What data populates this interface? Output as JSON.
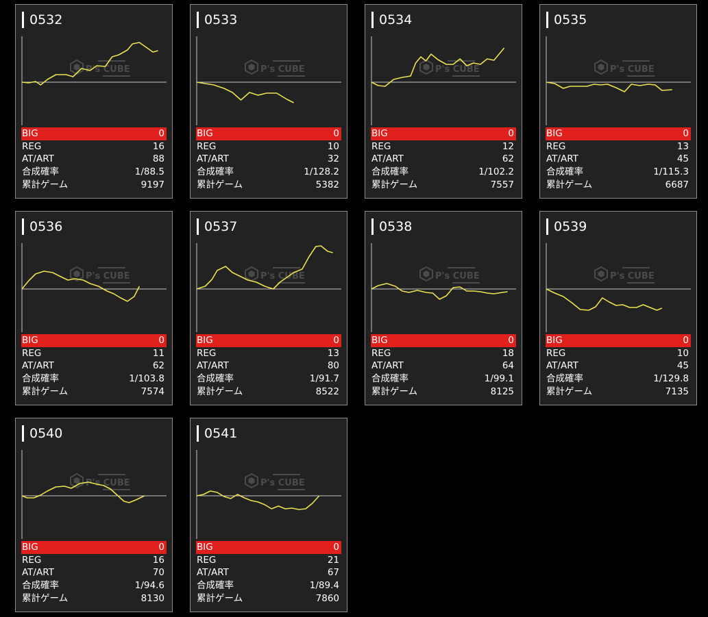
{
  "colors": {
    "background": "#000000",
    "card": "#222222",
    "border": "#8c8c8c",
    "big_row": "#e0201c",
    "line": "#ece252",
    "axis": "#c8c8c8"
  },
  "stat_labels": {
    "big": "BIG",
    "reg": "REG",
    "atart": "AT/ART",
    "prob": "合成確率",
    "games": "累計ゲーム"
  },
  "watermark": {
    "brand": "P's CUBE",
    "icon": "hexagon-logo-icon"
  },
  "machines": [
    {
      "id": "0532",
      "big": "0",
      "reg": "16",
      "atart": "88",
      "prob": "1/88.5",
      "games": "9197",
      "trace": [
        [
          0,
          0
        ],
        [
          4,
          -1
        ],
        [
          8,
          1
        ],
        [
          11,
          -4
        ],
        [
          15,
          4
        ],
        [
          20,
          11
        ],
        [
          26,
          11
        ],
        [
          30,
          8
        ],
        [
          35,
          20
        ],
        [
          40,
          17
        ],
        [
          44,
          24
        ],
        [
          49,
          23
        ],
        [
          53,
          37
        ],
        [
          57,
          40
        ],
        [
          62,
          47
        ],
        [
          65,
          56
        ],
        [
          69,
          58
        ],
        [
          73,
          51
        ],
        [
          77,
          44
        ],
        [
          80,
          46
        ]
      ]
    },
    {
      "id": "0533",
      "big": "0",
      "reg": "10",
      "atart": "32",
      "prob": "1/128.2",
      "games": "5382",
      "trace": [
        [
          0,
          0
        ],
        [
          5,
          -2
        ],
        [
          10,
          -4
        ],
        [
          16,
          -9
        ],
        [
          21,
          -15
        ],
        [
          26,
          -26
        ],
        [
          31,
          -15
        ],
        [
          36,
          -19
        ],
        [
          41,
          -16
        ],
        [
          47,
          -16
        ],
        [
          53,
          -25
        ],
        [
          57,
          -30
        ]
      ]
    },
    {
      "id": "0534",
      "big": "0",
      "reg": "12",
      "atart": "62",
      "prob": "1/102.2",
      "games": "7557",
      "trace": [
        [
          0,
          0
        ],
        [
          4,
          -5
        ],
        [
          8,
          -6
        ],
        [
          13,
          4
        ],
        [
          18,
          7
        ],
        [
          23,
          9
        ],
        [
          26,
          28
        ],
        [
          29,
          37
        ],
        [
          32,
          31
        ],
        [
          35,
          41
        ],
        [
          39,
          33
        ],
        [
          44,
          26
        ],
        [
          48,
          26
        ],
        [
          52,
          34
        ],
        [
          56,
          24
        ],
        [
          60,
          28
        ],
        [
          64,
          26
        ],
        [
          68,
          34
        ],
        [
          72,
          32
        ],
        [
          76,
          44
        ],
        [
          78,
          50
        ]
      ]
    },
    {
      "id": "0535",
      "big": "0",
      "reg": "13",
      "atart": "45",
      "prob": "1/115.3",
      "games": "6687",
      "trace": [
        [
          0,
          0
        ],
        [
          5,
          -2
        ],
        [
          10,
          -9
        ],
        [
          14,
          -6
        ],
        [
          19,
          -6
        ],
        [
          24,
          -6
        ],
        [
          28,
          -3
        ],
        [
          32,
          -4
        ],
        [
          36,
          -3
        ],
        [
          41,
          -8
        ],
        [
          46,
          -14
        ],
        [
          50,
          -3
        ],
        [
          55,
          -5
        ],
        [
          60,
          -3
        ],
        [
          64,
          -4
        ],
        [
          68,
          -12
        ],
        [
          74,
          -11
        ]
      ]
    },
    {
      "id": "0536",
      "big": "0",
      "reg": "11",
      "atart": "62",
      "prob": "1/103.8",
      "games": "7574",
      "trace": [
        [
          0,
          0
        ],
        [
          4,
          12
        ],
        [
          8,
          22
        ],
        [
          13,
          26
        ],
        [
          18,
          24
        ],
        [
          22,
          19
        ],
        [
          27,
          13
        ],
        [
          31,
          15
        ],
        [
          36,
          13
        ],
        [
          40,
          8
        ],
        [
          45,
          4
        ],
        [
          50,
          -3
        ],
        [
          54,
          -7
        ],
        [
          58,
          -13
        ],
        [
          62,
          -18
        ],
        [
          66,
          -11
        ],
        [
          69,
          4
        ]
      ]
    },
    {
      "id": "0537",
      "big": "0",
      "reg": "13",
      "atart": "80",
      "prob": "1/91.7",
      "games": "8522",
      "trace": [
        [
          0,
          0
        ],
        [
          5,
          4
        ],
        [
          9,
          14
        ],
        [
          12,
          27
        ],
        [
          17,
          33
        ],
        [
          21,
          24
        ],
        [
          26,
          18
        ],
        [
          30,
          13
        ],
        [
          35,
          10
        ],
        [
          40,
          4
        ],
        [
          45,
          0
        ],
        [
          49,
          10
        ],
        [
          53,
          17
        ],
        [
          57,
          24
        ],
        [
          62,
          29
        ],
        [
          66,
          47
        ],
        [
          70,
          62
        ],
        [
          73,
          63
        ],
        [
          77,
          55
        ],
        [
          80,
          53
        ]
      ]
    },
    {
      "id": "0538",
      "big": "0",
      "reg": "18",
      "atart": "64",
      "prob": "1/99.1",
      "games": "8125",
      "trace": [
        [
          0,
          0
        ],
        [
          4,
          5
        ],
        [
          9,
          8
        ],
        [
          14,
          4
        ],
        [
          18,
          -3
        ],
        [
          22,
          -5
        ],
        [
          27,
          -2
        ],
        [
          32,
          -5
        ],
        [
          36,
          -6
        ],
        [
          40,
          -15
        ],
        [
          44,
          -10
        ],
        [
          48,
          2
        ],
        [
          52,
          3
        ],
        [
          56,
          -3
        ],
        [
          60,
          -3
        ],
        [
          64,
          -4
        ],
        [
          68,
          -6
        ],
        [
          72,
          -7
        ],
        [
          77,
          -5
        ],
        [
          80,
          -4
        ]
      ]
    },
    {
      "id": "0539",
      "big": "0",
      "reg": "10",
      "atart": "45",
      "prob": "1/129.8",
      "games": "7135",
      "trace": [
        [
          0,
          0
        ],
        [
          5,
          -6
        ],
        [
          10,
          -11
        ],
        [
          15,
          -20
        ],
        [
          20,
          -30
        ],
        [
          25,
          -31
        ],
        [
          29,
          -26
        ],
        [
          33,
          -13
        ],
        [
          37,
          -19
        ],
        [
          41,
          -24
        ],
        [
          45,
          -23
        ],
        [
          49,
          -27
        ],
        [
          53,
          -27
        ],
        [
          57,
          -23
        ],
        [
          61,
          -27
        ],
        [
          65,
          -31
        ],
        [
          68,
          -28
        ]
      ]
    },
    {
      "id": "0540",
      "big": "0",
      "reg": "16",
      "atart": "70",
      "prob": "1/94.6",
      "games": "8130",
      "trace": [
        [
          0,
          0
        ],
        [
          3,
          -3
        ],
        [
          7,
          -3
        ],
        [
          11,
          1
        ],
        [
          15,
          7
        ],
        [
          20,
          13
        ],
        [
          25,
          14
        ],
        [
          29,
          11
        ],
        [
          34,
          18
        ],
        [
          39,
          20
        ],
        [
          44,
          17
        ],
        [
          48,
          15
        ],
        [
          52,
          10
        ],
        [
          56,
          1
        ],
        [
          60,
          -8
        ],
        [
          63,
          -10
        ],
        [
          67,
          -6
        ],
        [
          72,
          0
        ]
      ]
    },
    {
      "id": "0541",
      "big": "0",
      "reg": "21",
      "atart": "67",
      "prob": "1/89.4",
      "games": "7860",
      "trace": [
        [
          0,
          0
        ],
        [
          4,
          2
        ],
        [
          8,
          7
        ],
        [
          12,
          5
        ],
        [
          16,
          -1
        ],
        [
          20,
          -4
        ],
        [
          24,
          2
        ],
        [
          28,
          -3
        ],
        [
          32,
          -7
        ],
        [
          36,
          -9
        ],
        [
          40,
          -13
        ],
        [
          44,
          -19
        ],
        [
          48,
          -15
        ],
        [
          52,
          -19
        ],
        [
          56,
          -18
        ],
        [
          60,
          -20
        ],
        [
          64,
          -19
        ],
        [
          68,
          -11
        ],
        [
          72,
          0
        ]
      ]
    }
  ],
  "chart_data": {
    "type": "line",
    "ylim": [
      -40,
      65
    ],
    "xlim": [
      0,
      85
    ],
    "grid": false,
    "legend": "none"
  }
}
